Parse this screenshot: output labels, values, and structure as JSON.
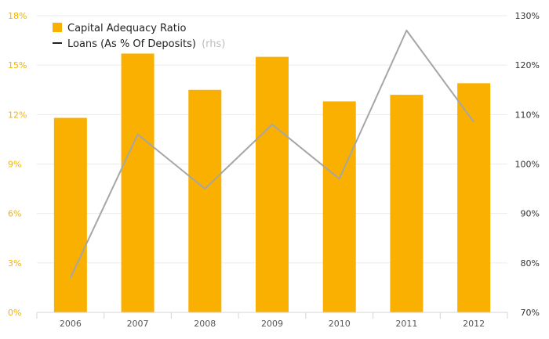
{
  "chart_data": {
    "type": "bar",
    "categories": [
      "2006",
      "2007",
      "2008",
      "2009",
      "2010",
      "2011",
      "2012"
    ],
    "series": [
      {
        "name": "Capital Adequacy Ratio",
        "type": "bar",
        "axis": "left",
        "color": "#f9b000",
        "values": [
          11.8,
          15.7,
          13.5,
          15.5,
          12.8,
          13.2,
          13.9
        ]
      },
      {
        "name": "Loans (As % Of Deposits)",
        "name_suffix": "(rhs)",
        "type": "line",
        "axis": "right",
        "color": "#a6a6a6",
        "values": [
          77,
          106,
          95,
          108,
          97,
          127,
          108.5
        ]
      }
    ],
    "y_left": {
      "min": 0,
      "max": 18,
      "ticks": [
        0,
        3,
        6,
        9,
        12,
        15,
        18
      ],
      "tick_labels": [
        "0%",
        "3%",
        "6%",
        "9%",
        "12%",
        "15%",
        "18%"
      ],
      "color": "#f2b300"
    },
    "y_right": {
      "min": 70,
      "max": 130,
      "ticks": [
        70,
        80,
        90,
        100,
        110,
        120,
        130
      ],
      "tick_labels": [
        "70%",
        "80%",
        "90%",
        "100%",
        "110%",
        "120%",
        "130%"
      ],
      "color": "#333333"
    },
    "grid": true,
    "legend_position": "top-left"
  }
}
